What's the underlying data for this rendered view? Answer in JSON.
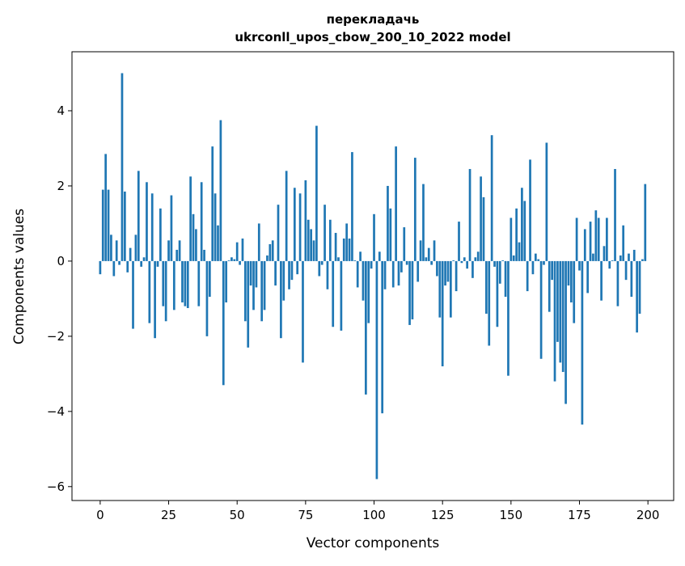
{
  "chart_data": {
    "type": "bar",
    "title": "перекладачь",
    "subtitle": "ukrconll_upos_cbow_200_10_2022 model",
    "xlabel": "Vector components",
    "ylabel": "Components values",
    "xlim": [
      -10.3,
      209.4
    ],
    "ylim": [
      -6.37,
      5.57
    ],
    "xticks": [
      0,
      25,
      50,
      75,
      100,
      125,
      150,
      175,
      200
    ],
    "xtick_labels": [
      "0",
      "25",
      "50",
      "75",
      "100",
      "125",
      "150",
      "175",
      "200"
    ],
    "yticks": [
      -6,
      -4,
      -2,
      0,
      2,
      4
    ],
    "ytick_labels": [
      "−6",
      "−4",
      "−2",
      "0",
      "2",
      "4"
    ],
    "grid": false,
    "color": "#1f77b4",
    "values": [
      -0.35,
      1.9,
      2.85,
      1.9,
      0.7,
      -0.4,
      0.55,
      -0.1,
      5.0,
      1.85,
      -0.3,
      0.35,
      -1.8,
      0.7,
      2.4,
      -0.15,
      0.1,
      2.1,
      -1.65,
      1.8,
      -2.05,
      -0.15,
      1.4,
      -1.2,
      -1.6,
      0.55,
      1.75,
      -1.3,
      0.3,
      0.55,
      -1.1,
      -1.2,
      -1.25,
      2.25,
      1.25,
      0.85,
      -1.2,
      2.1,
      0.3,
      -2.0,
      -0.95,
      3.05,
      1.8,
      0.95,
      3.75,
      -3.3,
      -1.1,
      0.02,
      0.1,
      0.05,
      0.5,
      -0.1,
      0.6,
      -1.6,
      -2.3,
      -0.65,
      -1.3,
      -0.7,
      1.0,
      -1.6,
      -1.3,
      0.15,
      0.45,
      0.55,
      -0.65,
      1.5,
      -2.05,
      -1.05,
      2.4,
      -0.75,
      -0.5,
      1.95,
      -0.35,
      1.8,
      -2.7,
      2.15,
      1.1,
      0.85,
      0.55,
      3.6,
      -0.4,
      -0.1,
      1.5,
      -0.75,
      1.1,
      -1.75,
      0.75,
      0.1,
      -1.85,
      0.6,
      1.0,
      0.6,
      2.9,
      0.02,
      -0.7,
      0.25,
      -1.05,
      -3.55,
      -1.65,
      -0.2,
      1.25,
      -5.8,
      0.25,
      -4.05,
      -0.75,
      2.0,
      1.4,
      -0.7,
      3.05,
      -0.65,
      -0.3,
      0.9,
      -0.1,
      -1.7,
      -1.55,
      2.75,
      -0.55,
      0.55,
      2.05,
      0.1,
      0.35,
      -0.1,
      0.55,
      -0.4,
      -1.5,
      -2.8,
      -0.65,
      -0.55,
      -1.5,
      0.02,
      -0.8,
      1.05,
      -0.05,
      0.1,
      -0.2,
      2.45,
      -0.45,
      0.1,
      0.25,
      2.25,
      1.7,
      -1.4,
      -2.25,
      3.35,
      -0.15,
      -1.75,
      -0.6,
      0.02,
      -0.95,
      -3.05,
      1.15,
      0.15,
      1.4,
      0.5,
      1.95,
      1.6,
      -0.8,
      2.7,
      -0.35,
      0.2,
      0.05,
      -2.6,
      -0.1,
      3.15,
      -1.35,
      -0.5,
      -3.2,
      -2.15,
      -2.7,
      -2.95,
      -3.8,
      -0.65,
      -1.1,
      -1.65,
      1.15,
      -0.25,
      -4.35,
      0.85,
      -0.85,
      1.05,
      0.2,
      1.35,
      1.15,
      -1.05,
      0.4,
      1.15,
      -0.2,
      0.02,
      2.45,
      -1.2,
      0.15,
      0.95,
      -0.5,
      0.2,
      -0.95,
      0.3,
      -1.9,
      -1.4,
      0.05,
      2.05
    ]
  }
}
